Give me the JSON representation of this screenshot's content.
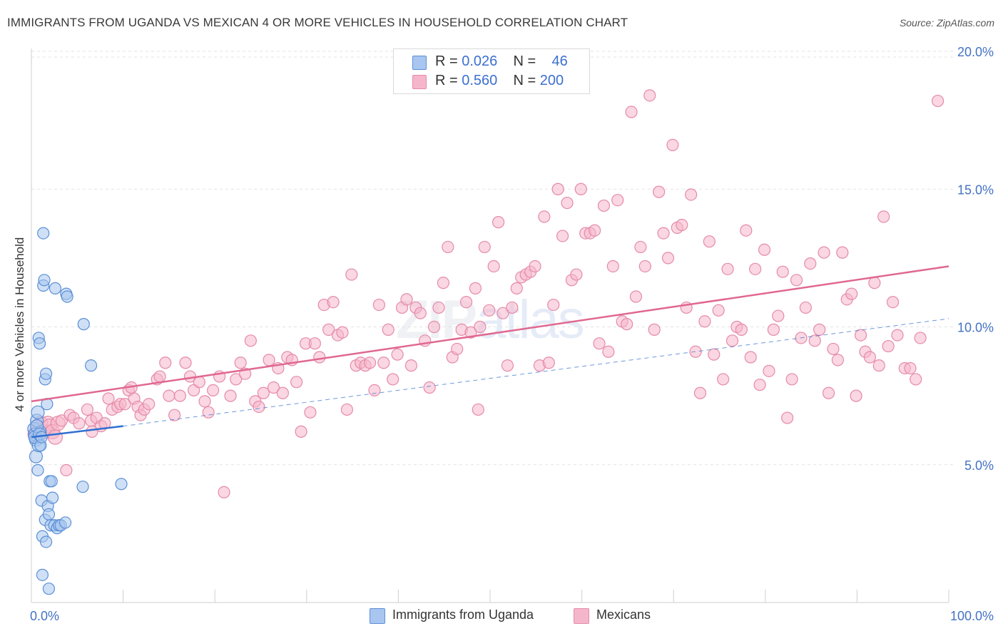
{
  "title": "IMMIGRANTS FROM UGANDA VS MEXICAN 4 OR MORE VEHICLES IN HOUSEHOLD CORRELATION CHART",
  "source": "Source: ZipAtlas.com",
  "watermark": {
    "zip": "ZIP",
    "atlas": "atlas"
  },
  "legend_top": [
    {
      "r_label": "R = ",
      "r_value": "0.026",
      "n_label": "N = ",
      "n_value": "46"
    },
    {
      "r_label": "R = ",
      "r_value": "0.560",
      "n_label": "N = ",
      "n_value": "200"
    }
  ],
  "colors": {
    "uganda_fill": "#a8c6ef",
    "uganda_stroke": "#5b8fd6",
    "uganda_line": "#2f6fd0",
    "mexican_fill": "#f5b6cb",
    "mexican_stroke": "#e58aa9",
    "mexican_line": "#e06890",
    "axis_text": "#4472c4",
    "grid": "#e3e3e3"
  },
  "chart_data": {
    "type": "scatter",
    "xlabel": "",
    "ylabel": "4 or more Vehicles in Household",
    "xlim": [
      0,
      100
    ],
    "ylim": [
      0,
      20
    ],
    "x_tick_labels": [
      "0.0%",
      "100.0%"
    ],
    "y_ticks": [
      5,
      10,
      15,
      20
    ],
    "y_tick_labels": [
      "5.0%",
      "10.0%",
      "15.0%",
      "20.0%"
    ],
    "grid": true,
    "legend_position": "bottom-center",
    "series": [
      {
        "name": "Immigrants from Uganda",
        "color": "#a8c6ef",
        "trend": {
          "x": [
            0,
            10
          ],
          "y": [
            6.0,
            6.4
          ],
          "extended": {
            "x": [
              10,
              100
            ],
            "y": [
              6.4,
              10.3
            ]
          }
        },
        "points": [
          [
            0.3,
            6.3
          ],
          [
            0.4,
            6.1
          ],
          [
            0.5,
            5.9
          ],
          [
            0.5,
            5.3
          ],
          [
            0.6,
            6.6
          ],
          [
            0.7,
            4.8
          ],
          [
            0.8,
            5.7
          ],
          [
            0.8,
            9.6
          ],
          [
            0.9,
            9.4
          ],
          [
            1.0,
            6.2
          ],
          [
            1.1,
            3.7
          ],
          [
            1.2,
            1.0
          ],
          [
            1.2,
            2.4
          ],
          [
            1.3,
            13.4
          ],
          [
            1.3,
            11.5
          ],
          [
            1.4,
            11.7
          ],
          [
            1.5,
            3.0
          ],
          [
            1.5,
            8.1
          ],
          [
            1.6,
            8.3
          ],
          [
            1.6,
            2.2
          ],
          [
            1.7,
            7.2
          ],
          [
            1.8,
            3.5
          ],
          [
            1.9,
            3.2
          ],
          [
            1.9,
            0.5
          ],
          [
            2.0,
            4.4
          ],
          [
            2.1,
            2.8
          ],
          [
            2.2,
            4.4
          ],
          [
            2.3,
            3.8
          ],
          [
            2.5,
            2.8
          ],
          [
            2.6,
            11.4
          ],
          [
            2.8,
            2.7
          ],
          [
            3.0,
            2.8
          ],
          [
            3.2,
            2.8
          ],
          [
            3.8,
            11.2
          ],
          [
            3.9,
            11.1
          ],
          [
            3.7,
            2.9
          ],
          [
            5.7,
            10.1
          ],
          [
            5.6,
            4.2
          ],
          [
            6.5,
            8.6
          ],
          [
            9.8,
            4.3
          ],
          [
            0.4,
            6.0
          ],
          [
            0.6,
            6.4
          ],
          [
            0.9,
            6.1
          ],
          [
            1.0,
            5.7
          ],
          [
            0.7,
            6.9
          ],
          [
            1.1,
            6.0
          ]
        ]
      },
      {
        "name": "Mexicans",
        "color": "#f5b6cb",
        "trend": {
          "x": [
            0,
            100
          ],
          "y": [
            7.3,
            12.2
          ]
        },
        "points": [
          [
            0.4,
            6.1
          ],
          [
            0.8,
            6.3
          ],
          [
            1.0,
            6.5
          ],
          [
            1.3,
            6.2
          ],
          [
            1.8,
            6.5
          ],
          [
            2.0,
            6.4
          ],
          [
            2.3,
            6.2
          ],
          [
            2.6,
            6.0
          ],
          [
            2.9,
            6.5
          ],
          [
            3.3,
            6.6
          ],
          [
            3.8,
            4.8
          ],
          [
            4.2,
            6.8
          ],
          [
            4.6,
            6.7
          ],
          [
            5.2,
            6.5
          ],
          [
            6.1,
            7.0
          ],
          [
            6.5,
            6.6
          ],
          [
            7.1,
            6.7
          ],
          [
            7.6,
            6.4
          ],
          [
            8.0,
            6.5
          ],
          [
            8.4,
            7.4
          ],
          [
            8.8,
            7.0
          ],
          [
            9.4,
            7.1
          ],
          [
            9.7,
            7.2
          ],
          [
            10.2,
            7.2
          ],
          [
            10.6,
            7.7
          ],
          [
            10.9,
            7.8
          ],
          [
            11.2,
            7.4
          ],
          [
            11.6,
            7.1
          ],
          [
            11.9,
            6.8
          ],
          [
            12.3,
            7.0
          ],
          [
            12.8,
            7.2
          ],
          [
            13.7,
            8.1
          ],
          [
            14.0,
            8.2
          ],
          [
            14.6,
            8.7
          ],
          [
            15.0,
            7.5
          ],
          [
            15.6,
            6.8
          ],
          [
            16.2,
            7.5
          ],
          [
            16.8,
            8.7
          ],
          [
            17.3,
            8.2
          ],
          [
            17.7,
            7.7
          ],
          [
            18.3,
            8.0
          ],
          [
            18.9,
            7.3
          ],
          [
            19.3,
            6.9
          ],
          [
            19.8,
            7.7
          ],
          [
            20.5,
            8.2
          ],
          [
            21.0,
            4.0
          ],
          [
            21.7,
            7.5
          ],
          [
            22.3,
            8.1
          ],
          [
            22.8,
            8.7
          ],
          [
            23.3,
            8.3
          ],
          [
            23.9,
            9.5
          ],
          [
            24.4,
            7.3
          ],
          [
            24.8,
            7.1
          ],
          [
            25.3,
            7.6
          ],
          [
            25.9,
            8.8
          ],
          [
            26.4,
            7.8
          ],
          [
            26.9,
            8.5
          ],
          [
            27.4,
            7.6
          ],
          [
            27.9,
            8.9
          ],
          [
            28.4,
            8.8
          ],
          [
            28.9,
            8.0
          ],
          [
            29.4,
            6.2
          ],
          [
            29.9,
            9.4
          ],
          [
            30.4,
            6.9
          ],
          [
            30.9,
            9.4
          ],
          [
            31.4,
            8.9
          ],
          [
            31.9,
            10.8
          ],
          [
            32.4,
            9.9
          ],
          [
            32.9,
            10.9
          ],
          [
            33.4,
            9.7
          ],
          [
            33.9,
            9.8
          ],
          [
            34.4,
            7.0
          ],
          [
            34.9,
            11.9
          ],
          [
            35.4,
            8.6
          ],
          [
            35.9,
            8.7
          ],
          [
            36.4,
            8.6
          ],
          [
            36.9,
            8.7
          ],
          [
            37.4,
            7.7
          ],
          [
            37.9,
            10.8
          ],
          [
            38.4,
            8.7
          ],
          [
            38.9,
            9.9
          ],
          [
            39.4,
            8.1
          ],
          [
            39.9,
            9.0
          ],
          [
            40.4,
            10.7
          ],
          [
            40.9,
            11.0
          ],
          [
            41.4,
            8.6
          ],
          [
            41.9,
            10.7
          ],
          [
            42.4,
            10.5
          ],
          [
            42.9,
            9.5
          ],
          [
            43.4,
            7.8
          ],
          [
            43.9,
            10.0
          ],
          [
            44.4,
            10.7
          ],
          [
            44.9,
            11.6
          ],
          [
            45.4,
            12.9
          ],
          [
            45.9,
            8.9
          ],
          [
            46.4,
            9.2
          ],
          [
            46.9,
            9.9
          ],
          [
            47.4,
            10.9
          ],
          [
            47.9,
            9.8
          ],
          [
            48.4,
            11.4
          ],
          [
            48.9,
            10.0
          ],
          [
            49.4,
            12.9
          ],
          [
            49.9,
            10.6
          ],
          [
            50.4,
            12.2
          ],
          [
            50.9,
            13.8
          ],
          [
            51.4,
            10.5
          ],
          [
            51.9,
            8.6
          ],
          [
            52.4,
            10.7
          ],
          [
            52.9,
            11.4
          ],
          [
            53.4,
            11.8
          ],
          [
            53.9,
            11.9
          ],
          [
            54.4,
            12.0
          ],
          [
            54.9,
            12.2
          ],
          [
            55.4,
            8.6
          ],
          [
            55.9,
            14.0
          ],
          [
            56.4,
            8.7
          ],
          [
            56.9,
            10.8
          ],
          [
            57.4,
            15.0
          ],
          [
            57.9,
            13.3
          ],
          [
            58.4,
            14.5
          ],
          [
            58.9,
            11.7
          ],
          [
            59.4,
            11.9
          ],
          [
            59.9,
            15.0
          ],
          [
            60.4,
            13.4
          ],
          [
            60.9,
            13.4
          ],
          [
            61.4,
            13.5
          ],
          [
            61.9,
            9.4
          ],
          [
            62.4,
            14.4
          ],
          [
            62.9,
            9.1
          ],
          [
            63.4,
            12.2
          ],
          [
            63.9,
            14.6
          ],
          [
            64.4,
            10.2
          ],
          [
            64.9,
            10.1
          ],
          [
            65.4,
            17.8
          ],
          [
            65.9,
            11.1
          ],
          [
            66.4,
            12.9
          ],
          [
            66.9,
            12.2
          ],
          [
            67.4,
            18.4
          ],
          [
            67.9,
            9.9
          ],
          [
            68.4,
            14.9
          ],
          [
            68.9,
            13.4
          ],
          [
            69.4,
            12.5
          ],
          [
            69.9,
            16.6
          ],
          [
            70.4,
            13.6
          ],
          [
            70.9,
            13.7
          ],
          [
            71.4,
            10.7
          ],
          [
            71.9,
            14.8
          ],
          [
            72.4,
            9.1
          ],
          [
            72.9,
            7.6
          ],
          [
            73.4,
            10.2
          ],
          [
            73.9,
            13.1
          ],
          [
            74.4,
            9.0
          ],
          [
            74.9,
            10.6
          ],
          [
            75.4,
            8.1
          ],
          [
            75.9,
            12.1
          ],
          [
            76.4,
            9.5
          ],
          [
            76.9,
            10.0
          ],
          [
            77.4,
            9.9
          ],
          [
            77.9,
            13.5
          ],
          [
            78.4,
            8.9
          ],
          [
            78.9,
            12.1
          ],
          [
            79.4,
            7.9
          ],
          [
            79.9,
            12.8
          ],
          [
            80.4,
            8.4
          ],
          [
            80.9,
            9.9
          ],
          [
            81.4,
            10.4
          ],
          [
            81.9,
            12.0
          ],
          [
            82.4,
            6.7
          ],
          [
            82.9,
            8.1
          ],
          [
            83.4,
            11.7
          ],
          [
            83.9,
            9.6
          ],
          [
            84.4,
            10.7
          ],
          [
            84.9,
            12.3
          ],
          [
            85.4,
            9.5
          ],
          [
            85.9,
            9.9
          ],
          [
            86.4,
            12.7
          ],
          [
            86.9,
            7.6
          ],
          [
            87.4,
            9.2
          ],
          [
            87.9,
            8.8
          ],
          [
            88.4,
            12.7
          ],
          [
            88.9,
            11.0
          ],
          [
            89.4,
            11.2
          ],
          [
            89.9,
            7.5
          ],
          [
            90.4,
            9.7
          ],
          [
            90.9,
            9.1
          ],
          [
            91.4,
            8.9
          ],
          [
            91.9,
            11.6
          ],
          [
            92.4,
            8.6
          ],
          [
            92.9,
            14.0
          ],
          [
            93.4,
            9.3
          ],
          [
            93.9,
            10.9
          ],
          [
            94.4,
            9.7
          ],
          [
            95.2,
            8.5
          ],
          [
            95.8,
            8.5
          ],
          [
            96.4,
            8.1
          ],
          [
            96.9,
            9.6
          ],
          [
            98.8,
            18.2
          ],
          [
            6.6,
            6.2
          ],
          [
            48.7,
            7.0
          ]
        ]
      }
    ]
  },
  "bottom_legend": [
    {
      "label": "Immigrants from Uganda"
    },
    {
      "label": "Mexicans"
    }
  ]
}
